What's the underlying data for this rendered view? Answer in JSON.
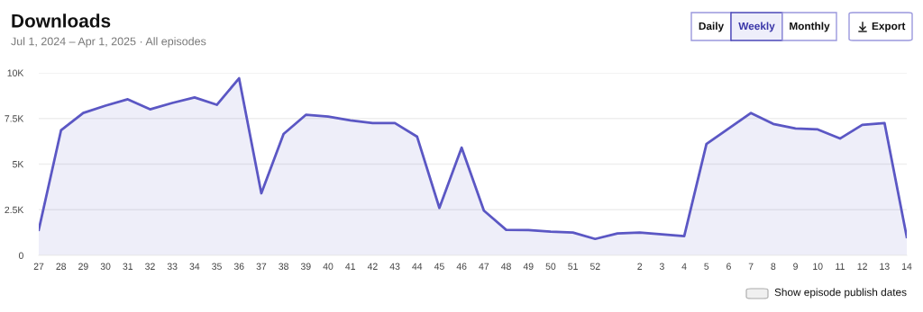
{
  "chart_data": {
    "type": "area",
    "title": "Downloads",
    "subtitle": "Jul 1, 2024 – Apr 1, 2025 · All episodes",
    "categories": [
      "27",
      "28",
      "29",
      "30",
      "31",
      "32",
      "33",
      "34",
      "35",
      "36",
      "37",
      "38",
      "39",
      "40",
      "41",
      "42",
      "43",
      "44",
      "45",
      "46",
      "47",
      "48",
      "49",
      "50",
      "51",
      "52",
      null,
      "2",
      "3",
      "4",
      "5",
      "6",
      "7",
      "8",
      "9",
      "10",
      "11",
      "12",
      "13",
      "14"
    ],
    "series": [
      {
        "color": "#5b57c4",
        "values": [
          1400,
          6850,
          7800,
          8200,
          8550,
          8000,
          8350,
          8650,
          8250,
          9700,
          3400,
          6650,
          7700,
          7600,
          7400,
          7250,
          7250,
          6500,
          2600,
          5900,
          2450,
          1400,
          1380,
          1300,
          1250,
          900,
          1200,
          1250,
          1150,
          1050,
          6100,
          6950,
          7800,
          7200,
          6950,
          6900,
          6400,
          7150,
          7250,
          1000
        ]
      }
    ],
    "ylim": [
      0,
      10000
    ],
    "yticks": [
      {
        "value": 0,
        "label": "0"
      },
      {
        "value": 2500,
        "label": "2.5K"
      },
      {
        "value": 5000,
        "label": "5K"
      },
      {
        "value": 7500,
        "label": "7.5K"
      },
      {
        "value": 10000,
        "label": "10K"
      }
    ],
    "grid": "y",
    "legend": false,
    "annotations": [
      "Daily",
      "Weekly",
      "Monthly",
      "Export",
      "Show episode publish dates"
    ]
  }
}
